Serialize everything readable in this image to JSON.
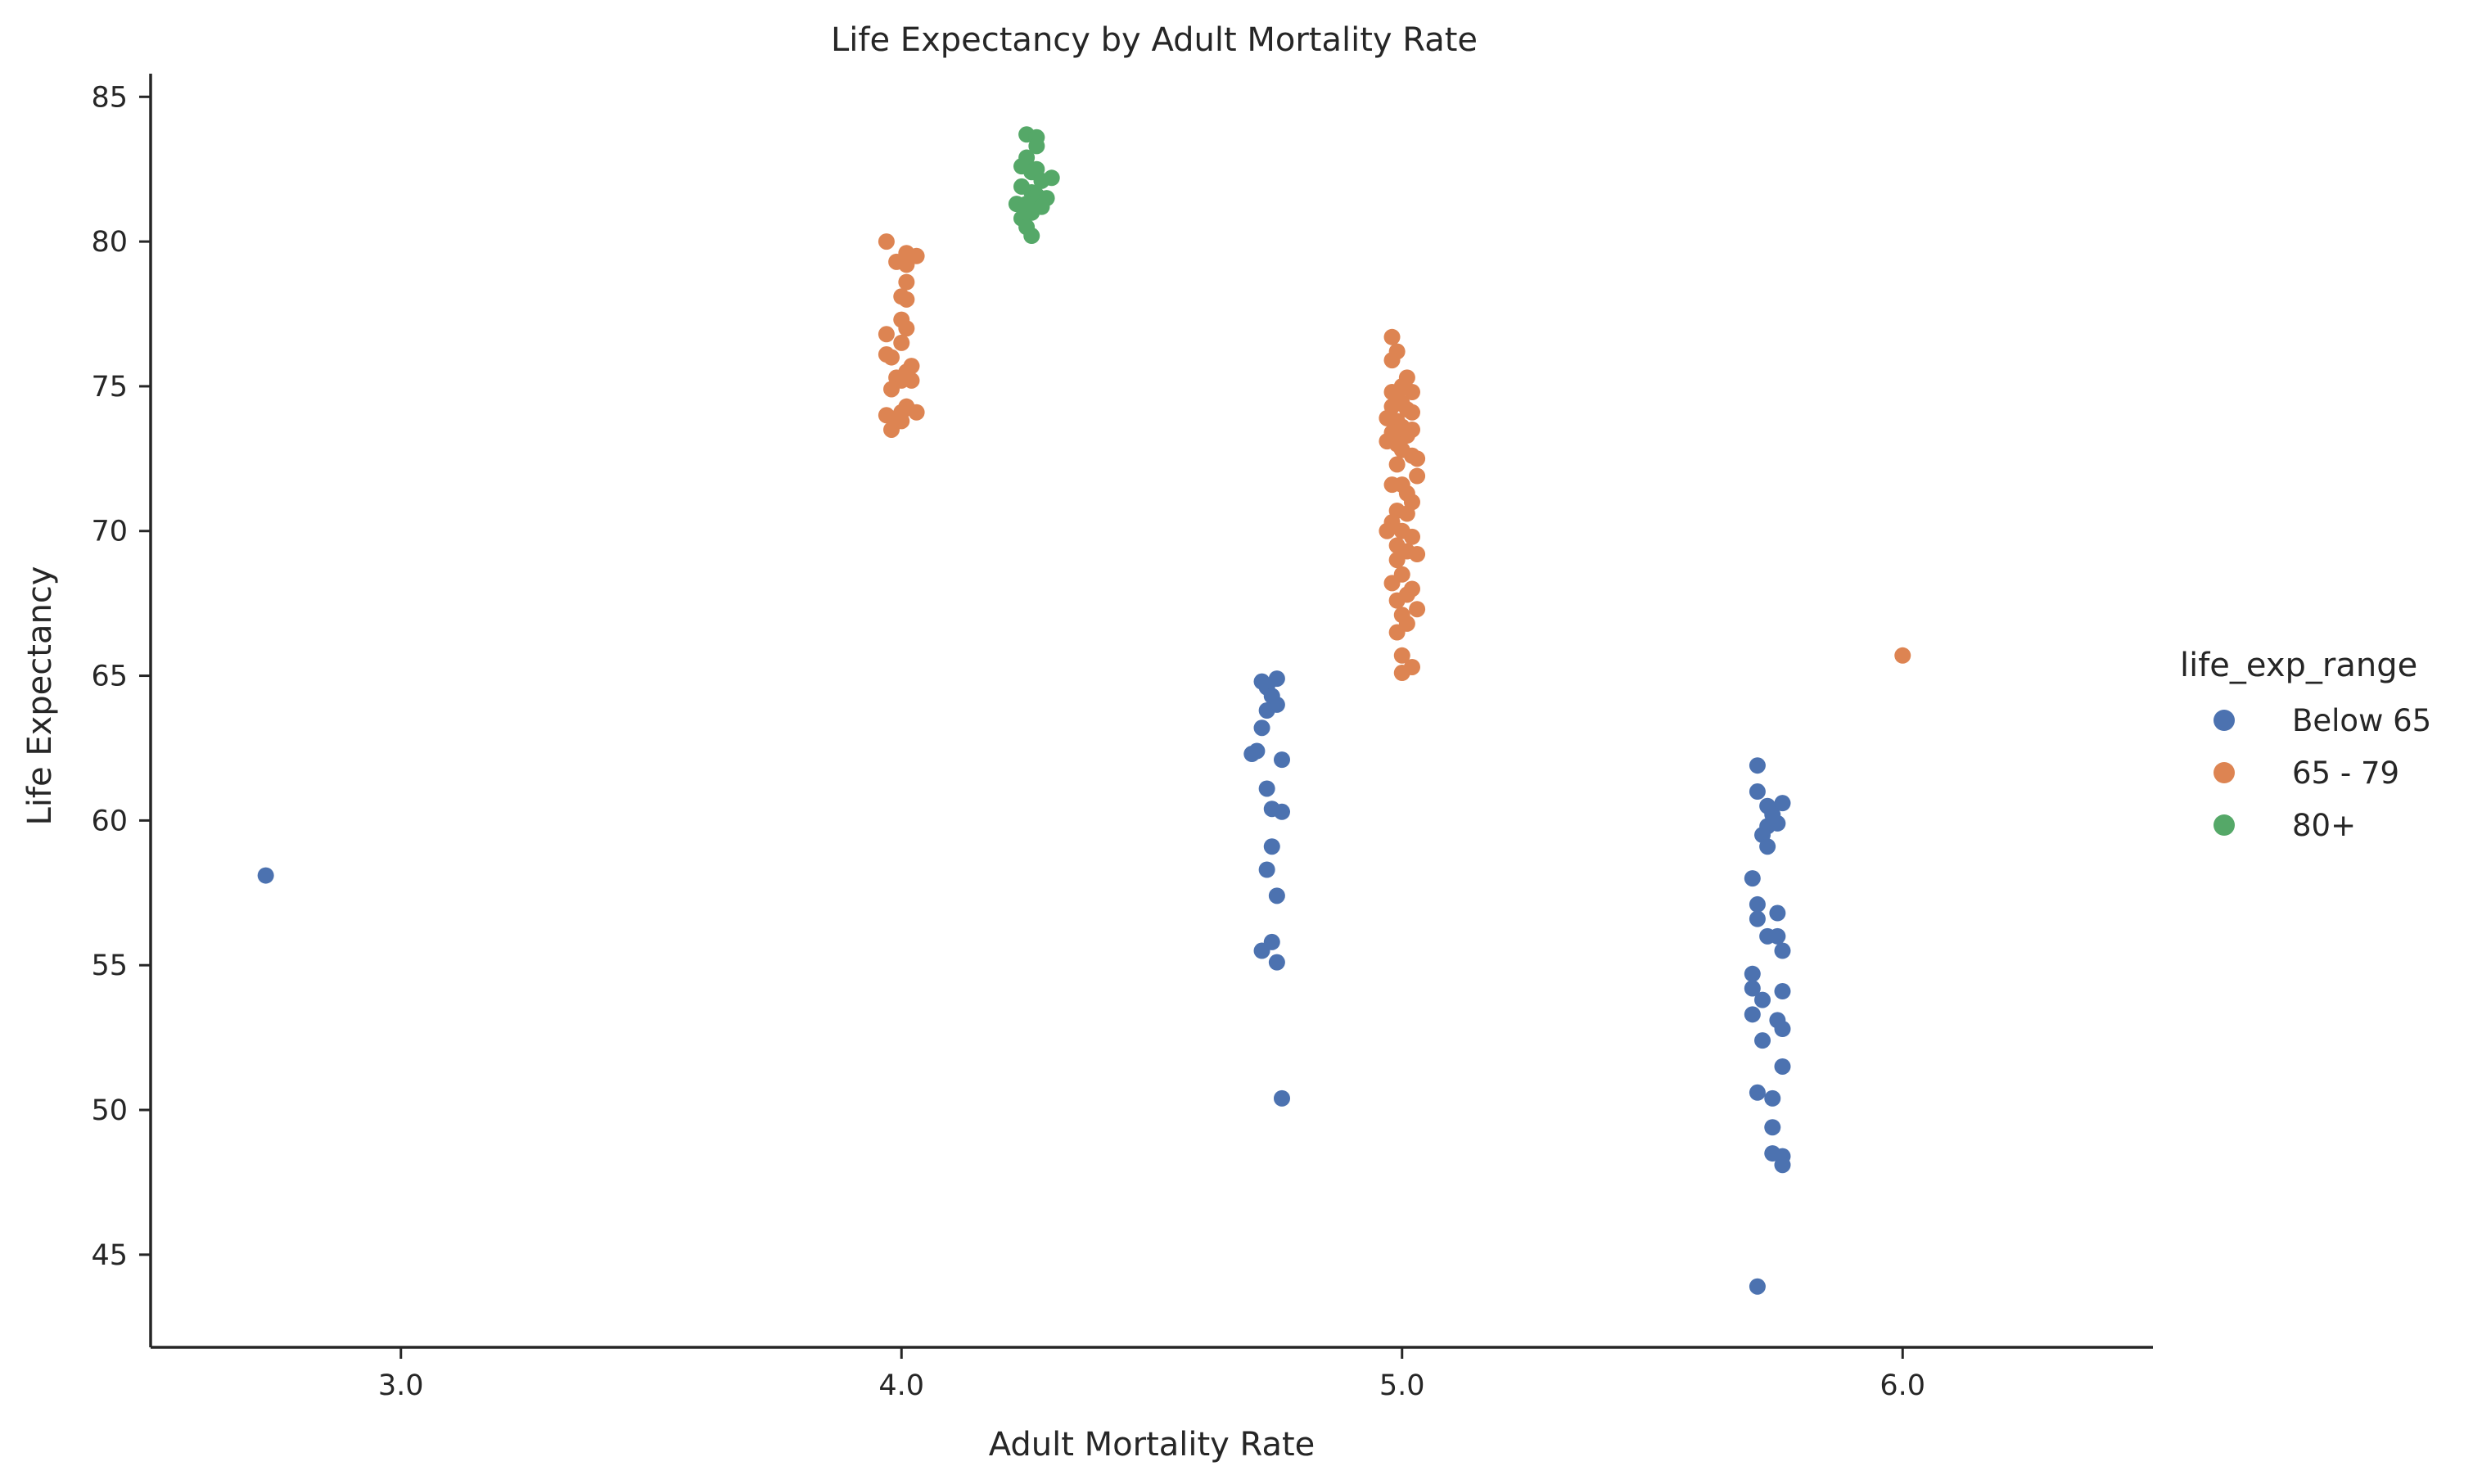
{
  "chart_data": {
    "type": "scatter",
    "title": "Life Expectancy by Adult Mortality Rate",
    "xlabel": "Adult Mortality Rate",
    "ylabel": "Life Expectancy",
    "xlim": [
      2.5,
      6.5
    ],
    "ylim": [
      41.8,
      85.8
    ],
    "x_ticks": [
      3.0,
      4.0,
      5.0,
      6.0
    ],
    "x_tick_labels": [
      "3.0",
      "4.0",
      "5.0",
      "6.0"
    ],
    "y_ticks": [
      45,
      50,
      55,
      60,
      65,
      70,
      75,
      80,
      85
    ],
    "y_tick_labels": [
      "45",
      "50",
      "55",
      "60",
      "65",
      "70",
      "75",
      "80",
      "85"
    ],
    "grid": false,
    "legend": {
      "title": "life_exp_range",
      "placement": "right",
      "entries": [
        "Below 65",
        "65 - 79",
        "80+"
      ]
    },
    "series": [
      {
        "name": "Below 65",
        "color": "#4c72b0",
        "points": [
          [
            2.73,
            58.1
          ],
          [
            4.72,
            64.8
          ],
          [
            4.75,
            64.9
          ],
          [
            4.73,
            64.6
          ],
          [
            4.74,
            64.3
          ],
          [
            4.75,
            64.0
          ],
          [
            4.73,
            63.8
          ],
          [
            4.72,
            63.2
          ],
          [
            4.71,
            62.4
          ],
          [
            4.7,
            62.3
          ],
          [
            4.76,
            62.1
          ],
          [
            4.73,
            61.1
          ],
          [
            4.74,
            60.4
          ],
          [
            4.76,
            60.3
          ],
          [
            4.74,
            59.1
          ],
          [
            4.73,
            58.3
          ],
          [
            4.75,
            57.4
          ],
          [
            4.74,
            55.8
          ],
          [
            4.72,
            55.5
          ],
          [
            4.75,
            55.1
          ],
          [
            4.76,
            50.4
          ],
          [
            5.71,
            61.9
          ],
          [
            5.71,
            61.0
          ],
          [
            5.73,
            60.5
          ],
          [
            5.76,
            60.6
          ],
          [
            5.74,
            60.2
          ],
          [
            5.73,
            59.8
          ],
          [
            5.75,
            59.9
          ],
          [
            5.72,
            59.5
          ],
          [
            5.73,
            59.1
          ],
          [
            5.7,
            58.0
          ],
          [
            5.71,
            57.1
          ],
          [
            5.75,
            56.8
          ],
          [
            5.71,
            56.6
          ],
          [
            5.73,
            56.0
          ],
          [
            5.75,
            56.0
          ],
          [
            5.76,
            55.5
          ],
          [
            5.7,
            54.7
          ],
          [
            5.7,
            54.2
          ],
          [
            5.76,
            54.1
          ],
          [
            5.72,
            53.8
          ],
          [
            5.7,
            53.3
          ],
          [
            5.75,
            53.1
          ],
          [
            5.76,
            52.8
          ],
          [
            5.72,
            52.4
          ],
          [
            5.76,
            51.5
          ],
          [
            5.71,
            50.6
          ],
          [
            5.74,
            50.4
          ],
          [
            5.74,
            49.4
          ],
          [
            5.74,
            48.5
          ],
          [
            5.76,
            48.4
          ],
          [
            5.76,
            48.1
          ],
          [
            5.71,
            43.9
          ]
        ]
      },
      {
        "name": "65 - 79",
        "color": "#dd8452",
        "points": [
          [
            3.97,
            80.0
          ],
          [
            4.01,
            79.6
          ],
          [
            4.03,
            79.5
          ],
          [
            3.99,
            79.3
          ],
          [
            4.01,
            79.2
          ],
          [
            4.01,
            78.6
          ],
          [
            4.0,
            78.1
          ],
          [
            4.01,
            78.0
          ],
          [
            4.0,
            77.3
          ],
          [
            4.01,
            77.0
          ],
          [
            3.97,
            76.8
          ],
          [
            4.0,
            76.5
          ],
          [
            3.97,
            76.1
          ],
          [
            3.98,
            76.0
          ],
          [
            4.02,
            75.7
          ],
          [
            4.01,
            75.5
          ],
          [
            3.99,
            75.3
          ],
          [
            4.02,
            75.2
          ],
          [
            4.0,
            75.2
          ],
          [
            3.98,
            74.9
          ],
          [
            4.01,
            74.3
          ],
          [
            4.0,
            74.1
          ],
          [
            4.03,
            74.1
          ],
          [
            3.97,
            74.0
          ],
          [
            3.99,
            73.9
          ],
          [
            4.0,
            73.8
          ],
          [
            3.98,
            73.5
          ],
          [
            4.98,
            76.7
          ],
          [
            4.99,
            76.2
          ],
          [
            4.98,
            75.9
          ],
          [
            5.01,
            75.3
          ],
          [
            5.0,
            75.0
          ],
          [
            4.98,
            74.8
          ],
          [
            5.02,
            74.8
          ],
          [
            4.99,
            74.6
          ],
          [
            5.0,
            74.4
          ],
          [
            4.98,
            74.3
          ],
          [
            5.01,
            74.2
          ],
          [
            5.02,
            74.1
          ],
          [
            4.97,
            73.9
          ],
          [
            4.99,
            73.8
          ],
          [
            5.0,
            73.6
          ],
          [
            5.02,
            73.5
          ],
          [
            4.98,
            73.4
          ],
          [
            5.01,
            73.3
          ],
          [
            4.97,
            73.1
          ],
          [
            4.99,
            73.0
          ],
          [
            5.0,
            72.8
          ],
          [
            5.02,
            72.6
          ],
          [
            5.03,
            72.5
          ],
          [
            4.99,
            72.3
          ],
          [
            5.03,
            71.9
          ],
          [
            5.0,
            71.6
          ],
          [
            4.98,
            71.6
          ],
          [
            5.01,
            71.3
          ],
          [
            5.02,
            71.0
          ],
          [
            4.99,
            70.7
          ],
          [
            5.01,
            70.6
          ],
          [
            4.98,
            70.3
          ],
          [
            4.97,
            70.0
          ],
          [
            5.0,
            70.0
          ],
          [
            5.02,
            69.8
          ],
          [
            4.99,
            69.5
          ],
          [
            5.01,
            69.3
          ],
          [
            5.03,
            69.2
          ],
          [
            4.99,
            69.0
          ],
          [
            5.0,
            68.5
          ],
          [
            4.98,
            68.2
          ],
          [
            5.02,
            68.0
          ],
          [
            5.01,
            67.8
          ],
          [
            4.99,
            67.6
          ],
          [
            5.03,
            67.3
          ],
          [
            5.0,
            67.1
          ],
          [
            5.01,
            66.8
          ],
          [
            4.99,
            66.5
          ],
          [
            5.0,
            65.7
          ],
          [
            5.02,
            65.3
          ],
          [
            5.0,
            65.1
          ],
          [
            6.0,
            65.7
          ]
        ]
      },
      {
        "name": "80+",
        "color": "#55a868",
        "points": [
          [
            4.25,
            83.7
          ],
          [
            4.27,
            83.6
          ],
          [
            4.27,
            83.3
          ],
          [
            4.25,
            82.9
          ],
          [
            4.24,
            82.6
          ],
          [
            4.27,
            82.5
          ],
          [
            4.26,
            82.4
          ],
          [
            4.3,
            82.2
          ],
          [
            4.28,
            82.1
          ],
          [
            4.24,
            81.9
          ],
          [
            4.26,
            81.7
          ],
          [
            4.27,
            81.6
          ],
          [
            4.29,
            81.5
          ],
          [
            4.23,
            81.3
          ],
          [
            4.25,
            81.3
          ],
          [
            4.28,
            81.2
          ],
          [
            4.26,
            81.0
          ],
          [
            4.24,
            80.8
          ],
          [
            4.25,
            80.5
          ],
          [
            4.26,
            80.2
          ]
        ]
      }
    ]
  }
}
